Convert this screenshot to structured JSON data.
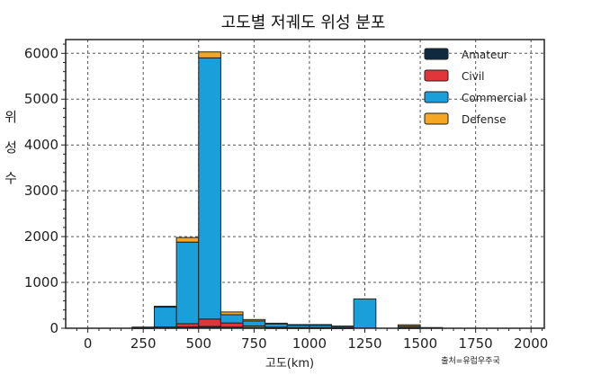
{
  "chart_data": {
    "type": "bar",
    "stacked": true,
    "title": "고도별 저궤도 위성 분포",
    "xlabel": "고도(km)",
    "ylabel": "위성 수",
    "xlim": [
      -100,
      2060
    ],
    "ylim": [
      0,
      6300
    ],
    "xticks": [
      "0",
      "250",
      "500",
      "750",
      "1000",
      "1250",
      "1500",
      "1750",
      "2000"
    ],
    "yticks": [
      "0",
      "1000",
      "2000",
      "3000",
      "4000",
      "5000",
      "6000"
    ],
    "grid": true,
    "legend_position": "top-right",
    "bin_width": 100,
    "bin_starts": [
      200,
      300,
      400,
      500,
      600,
      700,
      800,
      900,
      1000,
      1100,
      1200,
      1300,
      1400,
      1500
    ],
    "series": [
      {
        "name": "Amateur",
        "color": "#0f2a3f",
        "values": [
          5,
          10,
          30,
          40,
          25,
          10,
          5,
          5,
          5,
          3,
          0,
          0,
          5,
          0
        ]
      },
      {
        "name": "Civil",
        "color": "#e0353b",
        "values": [
          5,
          20,
          70,
          160,
          90,
          40,
          20,
          10,
          10,
          5,
          0,
          0,
          10,
          0
        ]
      },
      {
        "name": "Commercial",
        "color": "#1a9fdb",
        "values": [
          10,
          430,
          1780,
          5700,
          180,
          110,
          70,
          50,
          50,
          30,
          640,
          0,
          30,
          10
        ]
      },
      {
        "name": "Defense",
        "color": "#f5a623",
        "values": [
          5,
          20,
          100,
          130,
          60,
          30,
          15,
          15,
          15,
          10,
          0,
          0,
          30,
          5
        ]
      }
    ],
    "source": "출처=유럽우주국"
  }
}
